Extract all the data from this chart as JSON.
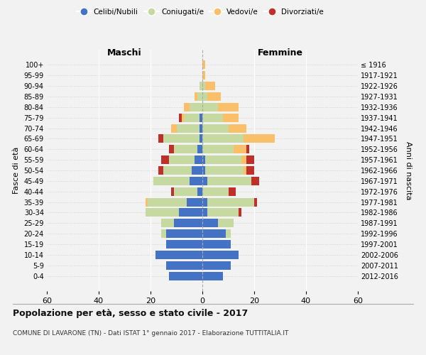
{
  "age_groups": [
    "0-4",
    "5-9",
    "10-14",
    "15-19",
    "20-24",
    "25-29",
    "30-34",
    "35-39",
    "40-44",
    "45-49",
    "50-54",
    "55-59",
    "60-64",
    "65-69",
    "70-74",
    "75-79",
    "80-84",
    "85-89",
    "90-94",
    "95-99",
    "100+"
  ],
  "birth_years": [
    "2012-2016",
    "2007-2011",
    "2002-2006",
    "1997-2001",
    "1992-1996",
    "1987-1991",
    "1982-1986",
    "1977-1981",
    "1972-1976",
    "1967-1971",
    "1962-1966",
    "1957-1961",
    "1952-1956",
    "1947-1951",
    "1942-1946",
    "1937-1941",
    "1932-1936",
    "1927-1931",
    "1922-1926",
    "1917-1921",
    "≤ 1916"
  ],
  "male": {
    "celibe": [
      13,
      14,
      18,
      14,
      14,
      11,
      9,
      6,
      2,
      5,
      4,
      3,
      2,
      1,
      1,
      1,
      0,
      0,
      0,
      0,
      0
    ],
    "coniugato": [
      0,
      0,
      0,
      0,
      2,
      5,
      13,
      15,
      9,
      14,
      11,
      10,
      9,
      14,
      9,
      6,
      5,
      2,
      1,
      0,
      0
    ],
    "vedovo": [
      0,
      0,
      0,
      0,
      0,
      0,
      0,
      1,
      0,
      0,
      0,
      0,
      0,
      0,
      2,
      1,
      2,
      1,
      0,
      0,
      0
    ],
    "divorziato": [
      0,
      0,
      0,
      0,
      0,
      0,
      0,
      0,
      1,
      0,
      2,
      3,
      2,
      2,
      0,
      1,
      0,
      0,
      0,
      0,
      0
    ]
  },
  "female": {
    "nubile": [
      8,
      11,
      14,
      11,
      9,
      6,
      2,
      2,
      0,
      2,
      1,
      1,
      0,
      0,
      0,
      0,
      0,
      0,
      0,
      0,
      0
    ],
    "coniugata": [
      0,
      0,
      0,
      0,
      2,
      6,
      12,
      18,
      10,
      17,
      15,
      14,
      12,
      16,
      10,
      8,
      6,
      2,
      1,
      0,
      0
    ],
    "vedova": [
      0,
      0,
      0,
      0,
      0,
      0,
      0,
      0,
      0,
      0,
      1,
      2,
      5,
      12,
      7,
      6,
      8,
      5,
      4,
      1,
      1
    ],
    "divorziata": [
      0,
      0,
      0,
      0,
      0,
      0,
      1,
      1,
      3,
      3,
      3,
      3,
      1,
      0,
      0,
      0,
      0,
      0,
      0,
      0,
      0
    ]
  },
  "colors": {
    "celibe": "#4472c4",
    "coniugato": "#c5d9a0",
    "vedovo": "#fac069",
    "divorziato": "#c0302a"
  },
  "title": "Popolazione per età, sesso e stato civile - 2017",
  "subtitle": "COMUNE DI LAVARONE (TN) - Dati ISTAT 1° gennaio 2017 - Elaborazione TUTTITALIA.IT",
  "xlabel_left": "Maschi",
  "xlabel_right": "Femmine",
  "ylabel_left": "Fasce di età",
  "ylabel_right": "Anni di nascita",
  "xlim": 60,
  "background_color": "#f2f2f2",
  "legend_labels": [
    "Celibi/Nubili",
    "Coniugati/e",
    "Vedovi/e",
    "Divorziati/e"
  ]
}
